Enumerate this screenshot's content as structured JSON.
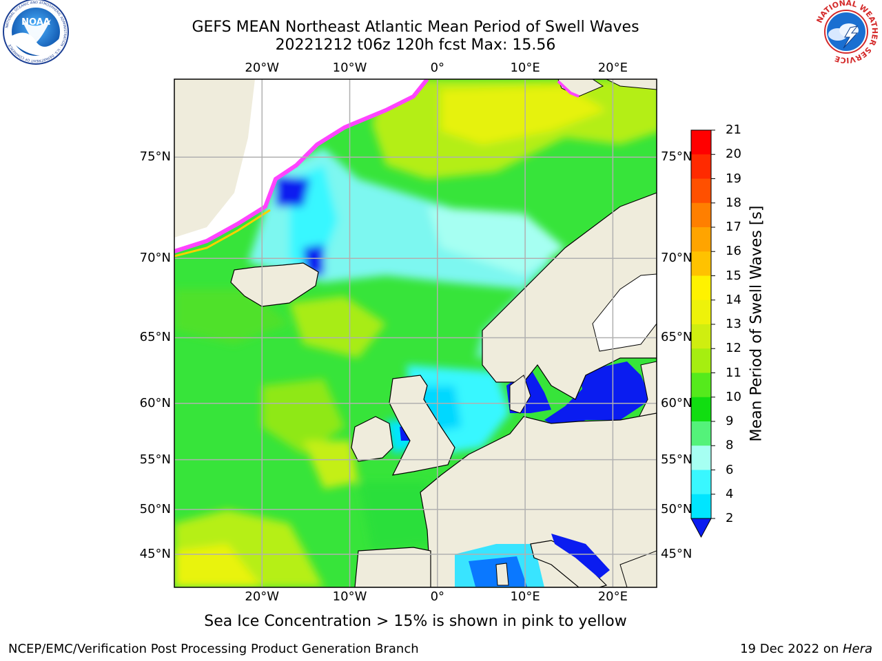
{
  "header": {
    "title_line1": "GEFS MEAN Northeast Atlantic Mean Period of Swell Waves",
    "title_line2": "20221212 t06z 120h fcst   Max: 15.56"
  },
  "logos": {
    "left": {
      "name": "noaa-logo",
      "text": "NOAA",
      "ring_text": "NATIONAL OCEANIC AND ATMOSPHERIC ADMINISTRATION · U.S. DEPARTMENT OF COMMERCE"
    },
    "right": {
      "name": "nws-logo",
      "ring_text": "NATIONAL WEATHER SERVICE"
    }
  },
  "map": {
    "projection": "lat-lon",
    "lon_range": [
      -30,
      25
    ],
    "lat_range": [
      41,
      78
    ],
    "lon_labels": [
      {
        "lon": -20,
        "text": "20°W"
      },
      {
        "lon": -10,
        "text": "10°W"
      },
      {
        "lon": 0,
        "text": "0°"
      },
      {
        "lon": 10,
        "text": "10°E"
      },
      {
        "lon": 20,
        "text": "20°E"
      }
    ],
    "lat_labels": [
      {
        "lat": 75,
        "text": "75°N"
      },
      {
        "lat": 70,
        "text": "70°N"
      },
      {
        "lat": 65,
        "text": "65°N"
      },
      {
        "lat": 60,
        "text": "60°N"
      },
      {
        "lat": 55,
        "text": "55°N"
      },
      {
        "lat": 50,
        "text": "50°N"
      },
      {
        "lat": 45,
        "text": "45°N"
      }
    ],
    "colors": {
      "land": "#efecdc",
      "grid": "#b0b0b0",
      "ice_edge": "#ff44ff"
    }
  },
  "colorbar": {
    "label": "Mean Period of Swell Waves [s]",
    "ticks": [
      "2",
      "4",
      "6",
      "8",
      "9",
      "10",
      "11",
      "12",
      "13",
      "14",
      "15",
      "16",
      "17",
      "18",
      "19",
      "20",
      "21"
    ],
    "colors": [
      "#0a1cf0",
      "#0a78ff",
      "#00e5ff",
      "#39f7ff",
      "#a6fff2",
      "#54f27a",
      "#11dd11",
      "#55ea1c",
      "#a6ee10",
      "#cfee10",
      "#eef20a",
      "#fff200",
      "#ffc200",
      "#ffa400",
      "#ff7f00",
      "#ff5000",
      "#ff2a00",
      "#ff0000"
    ]
  },
  "note": "Sea Ice Concentration > 15% is shown in pink to yellow",
  "footer": {
    "left": "NCEP/EMC/Verification Post Processing Product Generation Branch",
    "date": "19 Dec 2022 on ",
    "machine": "Hera"
  }
}
